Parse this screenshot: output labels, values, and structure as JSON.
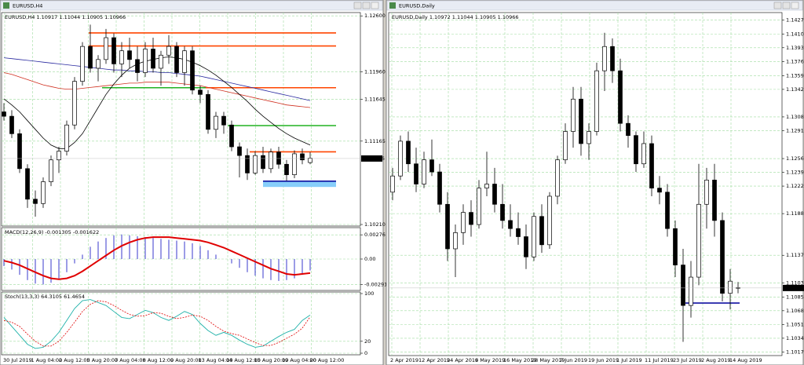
{
  "windows": [
    {
      "type": "candlestick",
      "title": "EURUSD,H4",
      "info": "EURUSD,H4 1.10917 1.11044 1.10905 1.10966",
      "ylim": [
        1.1021,
        1.1262
      ],
      "price_ticks": [
        {
          "value": 1.126,
          "label": "1.12600"
        },
        {
          "value": 1.1196,
          "label": "1.11960"
        },
        {
          "value": 1.11645,
          "label": "1.11645"
        },
        {
          "value": 1.11165,
          "label": "1.11165"
        },
        {
          "value": 1.1021,
          "label": "1.10210"
        }
      ],
      "current_price": {
        "value": 1.10966,
        "label": "1.10966"
      },
      "dates": [
        "30 Jul 2019",
        "1 Aug 04:00",
        "2 Aug 12:00",
        "5 Aug 20:00",
        "7 Aug 04:00",
        "8 Aug 12:00",
        "9 Aug 20:00",
        "13 Aug 04:00",
        "14 Aug 12:00",
        "15 Aug 20:00",
        "19 Aug 04:00",
        "20 Aug 12:00"
      ],
      "candles": [
        [
          1.115,
          1.116,
          1.114,
          1.1145
        ],
        [
          1.1145,
          1.1152,
          1.112,
          1.1125
        ],
        [
          1.1125,
          1.113,
          1.108,
          1.1085
        ],
        [
          1.1085,
          1.109,
          1.104,
          1.105
        ],
        [
          1.105,
          1.106,
          1.103,
          1.1045
        ],
        [
          1.1045,
          1.1075,
          1.104,
          1.107
        ],
        [
          1.107,
          1.11,
          1.1065,
          1.1095
        ],
        [
          1.1095,
          1.111,
          1.108,
          1.1105
        ],
        [
          1.1105,
          1.114,
          1.11,
          1.1135
        ],
        [
          1.1135,
          1.119,
          1.113,
          1.1185
        ],
        [
          1.1185,
          1.123,
          1.118,
          1.1225
        ],
        [
          1.1225,
          1.125,
          1.1195,
          1.12
        ],
        [
          1.12,
          1.1215,
          1.1185,
          1.121
        ],
        [
          1.121,
          1.1245,
          1.1205,
          1.1235
        ],
        [
          1.1235,
          1.124,
          1.1195,
          1.1205
        ],
        [
          1.1205,
          1.123,
          1.119,
          1.122
        ],
        [
          1.122,
          1.1235,
          1.12,
          1.121
        ],
        [
          1.121,
          1.1225,
          1.1185,
          1.1195
        ],
        [
          1.1195,
          1.123,
          1.119,
          1.1222
        ],
        [
          1.1222,
          1.1235,
          1.1195,
          1.12
        ],
        [
          1.12,
          1.122,
          1.118,
          1.1215
        ],
        [
          1.1215,
          1.1238,
          1.1205,
          1.1225
        ],
        [
          1.1225,
          1.123,
          1.119,
          1.1195
        ],
        [
          1.1195,
          1.1225,
          1.118,
          1.122
        ],
        [
          1.122,
          1.1225,
          1.117,
          1.1175
        ],
        [
          1.1175,
          1.118,
          1.116,
          1.117
        ],
        [
          1.117,
          1.1175,
          1.1125,
          1.113
        ],
        [
          1.113,
          1.115,
          1.112,
          1.1145
        ],
        [
          1.1145,
          1.115,
          1.1125,
          1.1135
        ],
        [
          1.1135,
          1.114,
          1.1105,
          1.111
        ],
        [
          1.111,
          1.1115,
          1.1075,
          1.11
        ],
        [
          1.11,
          1.1108,
          1.1072,
          1.108
        ],
        [
          1.108,
          1.1105,
          1.1078,
          1.11
        ],
        [
          1.11,
          1.111,
          1.108,
          1.1085
        ],
        [
          1.1085,
          1.1108,
          1.108,
          1.1104
        ],
        [
          1.1104,
          1.111,
          1.1085,
          1.109
        ],
        [
          1.109,
          1.1095,
          1.1071,
          1.1078
        ],
        [
          1.1078,
          1.1106,
          1.1074,
          1.1102
        ],
        [
          1.1102,
          1.1108,
          1.109,
          1.1095
        ],
        [
          1.1092,
          1.1104,
          1.109,
          1.1097
        ]
      ],
      "moving_averages": [
        {
          "color": "#2a2aa0",
          "values": [
            1.1212,
            1.1211,
            1.121,
            1.1209,
            1.1208,
            1.1207,
            1.1206,
            1.1205,
            1.1204,
            1.1203,
            1.1202,
            1.1201,
            1.12,
            1.1199,
            1.1198,
            1.1198,
            1.1197,
            1.1197,
            1.1196,
            1.1196,
            1.1195,
            1.1195,
            1.1194,
            1.1193,
            1.1192,
            1.1191,
            1.1189,
            1.1187,
            1.1185,
            1.1183,
            1.1181,
            1.1179,
            1.1177,
            1.1175,
            1.1173,
            1.1171,
            1.1169,
            1.1167,
            1.1165,
            1.1163
          ]
        },
        {
          "color": "#d03020",
          "values": [
            1.1195,
            1.1193,
            1.119,
            1.1187,
            1.1184,
            1.1181,
            1.1179,
            1.1177,
            1.1176,
            1.1176,
            1.1177,
            1.1178,
            1.1179,
            1.118,
            1.1181,
            1.1182,
            1.1183,
            1.1183,
            1.1184,
            1.1184,
            1.1184,
            1.1184,
            1.1183,
            1.1182,
            1.1181,
            1.118,
            1.1178,
            1.1176,
            1.1174,
            1.1172,
            1.117,
            1.1168,
            1.1166,
            1.1164,
            1.1162,
            1.116,
            1.1158,
            1.1157,
            1.1156,
            1.1155
          ]
        },
        {
          "color": "#000000",
          "values": [
            1.1165,
            1.1158,
            1.115,
            1.114,
            1.113,
            1.112,
            1.1112,
            1.1108,
            1.1108,
            1.1115,
            1.1125,
            1.114,
            1.1155,
            1.117,
            1.1182,
            1.1192,
            1.12,
            1.1205,
            1.1208,
            1.121,
            1.1212,
            1.1213,
            1.1212,
            1.121,
            1.1207,
            1.1203,
            1.1198,
            1.1192,
            1.1185,
            1.1178,
            1.117,
            1.1162,
            1.1153,
            1.1145,
            1.1138,
            1.1131,
            1.1125,
            1.112,
            1.1116,
            1.1112
          ]
        }
      ],
      "levels": [
        {
          "value": 1.12405,
          "color": "#ff4500"
        },
        {
          "value": 1.12255,
          "color": "#ff4500"
        },
        {
          "value": 1.11777,
          "color": "#22b222"
        },
        {
          "value": 1.11777,
          "color": "#ff4500"
        },
        {
          "value": 1.11343,
          "color": "#22b222"
        },
        {
          "value": 1.11042,
          "color": "#ff4500"
        },
        {
          "value": 1.10706,
          "color": "#1010a0"
        }
      ],
      "zone": {
        "values": [
          1.1064,
          1.10706
        ],
        "color": "#87cefa"
      },
      "macd": {
        "label": "MACD(12,26,9) -0.001305 -0.001622",
        "ylim": [
          -0.0034,
          0.0034
        ],
        "ticks": [
          0.00276,
          {
            "value": 0,
            "label": "0.00"
          },
          -0.002913
        ],
        "histogram_color": "#5a5ad6",
        "signal_color": "#e00000",
        "histogram": [
          -0.0008,
          -0.0012,
          -0.0018,
          -0.0024,
          -0.0028,
          -0.0029,
          -0.0027,
          -0.0022,
          -0.0015,
          -0.0005,
          0.0005,
          0.0014,
          0.002,
          0.0024,
          0.0027,
          0.0028,
          0.0027,
          0.0026,
          0.0025,
          0.0024,
          0.0023,
          0.0022,
          0.0021,
          0.002,
          0.0018,
          0.0015,
          0.001,
          0.0005,
          0.0,
          -0.0005,
          -0.001,
          -0.0015,
          -0.0019,
          -0.0022,
          -0.0024,
          -0.0025,
          -0.0024,
          -0.0022,
          -0.0018,
          -0.0013
        ],
        "signal": [
          -0.0002,
          -0.0004,
          -0.0007,
          -0.0011,
          -0.0015,
          -0.0019,
          -0.0022,
          -0.0023,
          -0.0022,
          -0.0019,
          -0.0014,
          -0.0008,
          -0.0002,
          0.0004,
          0.001,
          0.0015,
          0.0019,
          0.0022,
          0.0024,
          0.0025,
          0.0025,
          0.0025,
          0.0024,
          0.0023,
          0.0022,
          0.0021,
          0.0019,
          0.0016,
          0.0013,
          0.0009,
          0.0005,
          0.0001,
          -0.0003,
          -0.0007,
          -0.0011,
          -0.0014,
          -0.0017,
          -0.0018,
          -0.0017,
          -0.0016
        ]
      },
      "stoch": {
        "label": "Stoch(13,3,3) 64.3105 61.4654",
        "ylim": [
          0,
          100
        ],
        "ticks": [
          100,
          20,
          0
        ],
        "main_color": "#20b2aa",
        "signal_color": "#e00000",
        "main": [
          60,
          45,
          30,
          15,
          8,
          10,
          20,
          35,
          55,
          75,
          88,
          90,
          85,
          80,
          70,
          60,
          58,
          65,
          72,
          68,
          60,
          55,
          62,
          70,
          65,
          50,
          38,
          30,
          35,
          30,
          22,
          15,
          10,
          12,
          20,
          28,
          35,
          40,
          55,
          64
        ],
        "signal": [
          55,
          52,
          45,
          32,
          20,
          12,
          12,
          20,
          35,
          52,
          70,
          82,
          88,
          86,
          80,
          72,
          65,
          62,
          63,
          68,
          67,
          62,
          58,
          60,
          64,
          62,
          55,
          45,
          37,
          33,
          30,
          24,
          18,
          13,
          13,
          18,
          25,
          32,
          42,
          61
        ]
      }
    },
    {
      "type": "candlestick",
      "title": "EURUSD,Daily",
      "info": "EURUSD,Daily 1.10972 1.11044 1.10905 1.10966",
      "ylim": [
        1.1015,
        1.1435
      ],
      "price_ticks": [
        {
          "value": 1.14275,
          "label": "1.14275"
        },
        {
          "value": 1.14105,
          "label": "1.14105"
        },
        {
          "value": 1.13935,
          "label": "1.13935"
        },
        {
          "value": 1.13765,
          "label": "1.13765"
        },
        {
          "value": 1.1359,
          "label": "1.13590"
        },
        {
          "value": 1.1342,
          "label": "1.13420"
        },
        {
          "value": 1.1308,
          "label": "1.13080"
        },
        {
          "value": 1.1291,
          "label": "1.12910"
        },
        {
          "value": 1.12565,
          "label": "1.12565"
        },
        {
          "value": 1.12395,
          "label": "1.12395"
        },
        {
          "value": 1.12225,
          "label": "1.12225"
        },
        {
          "value": 1.11885,
          "label": "1.11885"
        },
        {
          "value": 1.1137,
          "label": "1.11370"
        },
        {
          "value": 1.1103,
          "label": "1.11030"
        },
        {
          "value": 1.10855,
          "label": "1.10855"
        },
        {
          "value": 1.10685,
          "label": "1.10685"
        },
        {
          "value": 1.10515,
          "label": "1.10515"
        },
        {
          "value": 1.10345,
          "label": "1.10345"
        },
        {
          "value": 1.10175,
          "label": "1.10175"
        }
      ],
      "current_price": {
        "value": 1.10966,
        "label": "1.10966"
      },
      "dates": [
        "2 Apr 2019",
        "12 Apr 2019",
        "24 Apr 2019",
        "6 May 2019",
        "16 May 2019",
        "28 May 2019",
        "7 Jun 2019",
        "19 Jun 2019",
        "1 Jul 2019",
        "11 Jul 2019",
        "23 Jul 2019",
        "2 Aug 2019",
        "14 Aug 2019"
      ],
      "candles": [
        [
          1.1215,
          1.1245,
          1.1205,
          1.1235
        ],
        [
          1.1235,
          1.1285,
          1.123,
          1.1278
        ],
        [
          1.1278,
          1.129,
          1.124,
          1.125
        ],
        [
          1.125,
          1.127,
          1.1215,
          1.1225
        ],
        [
          1.1225,
          1.1265,
          1.122,
          1.1255
        ],
        [
          1.1255,
          1.128,
          1.1235,
          1.124
        ],
        [
          1.124,
          1.125,
          1.119,
          1.12
        ],
        [
          1.12,
          1.1215,
          1.113,
          1.1145
        ],
        [
          1.1145,
          1.1175,
          1.111,
          1.1165
        ],
        [
          1.1165,
          1.12,
          1.115,
          1.119
        ],
        [
          1.119,
          1.1205,
          1.116,
          1.1175
        ],
        [
          1.1175,
          1.123,
          1.117,
          1.122
        ],
        [
          1.122,
          1.1265,
          1.121,
          1.1225
        ],
        [
          1.1225,
          1.1245,
          1.119,
          1.12
        ],
        [
          1.12,
          1.1225,
          1.117,
          1.118
        ],
        [
          1.118,
          1.12,
          1.116,
          1.117
        ],
        [
          1.117,
          1.119,
          1.115,
          1.116
        ],
        [
          1.116,
          1.1175,
          1.112,
          1.1135
        ],
        [
          1.1135,
          1.119,
          1.113,
          1.1185
        ],
        [
          1.1185,
          1.12,
          1.114,
          1.115
        ],
        [
          1.115,
          1.1215,
          1.1145,
          1.121
        ],
        [
          1.121,
          1.126,
          1.12,
          1.1255
        ],
        [
          1.1255,
          1.13,
          1.125,
          1.129
        ],
        [
          1.129,
          1.1345,
          1.127,
          1.133
        ],
        [
          1.133,
          1.1345,
          1.126,
          1.1275
        ],
        [
          1.1275,
          1.13,
          1.1255,
          1.129
        ],
        [
          1.129,
          1.1375,
          1.1285,
          1.1365
        ],
        [
          1.1365,
          1.1412,
          1.134,
          1.1395
        ],
        [
          1.1395,
          1.1405,
          1.135,
          1.1365
        ],
        [
          1.1365,
          1.138,
          1.129,
          1.13
        ],
        [
          1.13,
          1.131,
          1.127,
          1.1285
        ],
        [
          1.1285,
          1.129,
          1.124,
          1.125
        ],
        [
          1.125,
          1.129,
          1.1245,
          1.1275
        ],
        [
          1.1275,
          1.1285,
          1.121,
          1.122
        ],
        [
          1.122,
          1.1235,
          1.12,
          1.1215
        ],
        [
          1.1215,
          1.1225,
          1.116,
          1.117
        ],
        [
          1.117,
          1.118,
          1.111,
          1.1125
        ],
        [
          1.1125,
          1.1145,
          1.103,
          1.1075
        ],
        [
          1.1075,
          1.113,
          1.106,
          1.111
        ],
        [
          1.111,
          1.125,
          1.11,
          1.12
        ],
        [
          1.12,
          1.1245,
          1.117,
          1.123
        ],
        [
          1.123,
          1.125,
          1.116,
          1.118
        ],
        [
          1.118,
          1.119,
          1.108,
          1.109
        ],
        [
          1.109,
          1.112,
          1.107,
          1.1105
        ],
        [
          1.1097,
          1.1104,
          1.109,
          1.1097
        ]
      ],
      "levels": [
        {
          "value": 1.1078,
          "color": "#1010a0"
        }
      ]
    }
  ]
}
